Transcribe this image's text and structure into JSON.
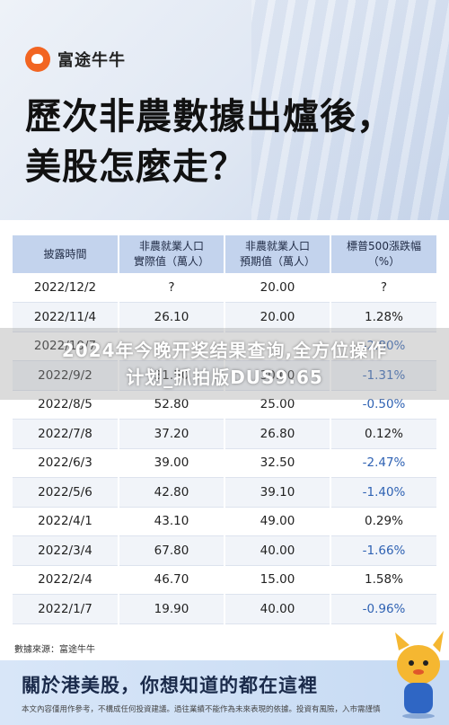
{
  "brand": {
    "name": "富途牛牛",
    "accent": "#f26522"
  },
  "title": {
    "line1": "歷次非農數據出爐後，",
    "line2": "美股怎麼走？"
  },
  "table": {
    "headers": [
      [
        "披露時間"
      ],
      [
        "非農就業人口",
        "實際值（萬人）"
      ],
      [
        "非農就業人口",
        "預期值（萬人）"
      ],
      [
        "標普500漲跌幅",
        "（%）"
      ]
    ],
    "rows": [
      [
        "2022/12/2",
        "?",
        "20.00",
        "?"
      ],
      [
        "2022/11/4",
        "26.10",
        "20.00",
        "1.28%"
      ],
      [
        "2022/10/7",
        "",
        "",
        "-2.80%"
      ],
      [
        "2022/9/2",
        "31.50",
        "30.00",
        "-1.31%"
      ],
      [
        "2022/8/5",
        "52.80",
        "25.00",
        "-0.50%"
      ],
      [
        "2022/7/8",
        "37.20",
        "26.80",
        "0.12%"
      ],
      [
        "2022/6/3",
        "39.00",
        "32.50",
        "-2.47%"
      ],
      [
        "2022/5/6",
        "42.80",
        "39.10",
        "-1.40%"
      ],
      [
        "2022/4/1",
        "43.10",
        "49.00",
        "0.29%"
      ],
      [
        "2022/3/4",
        "67.80",
        "40.00",
        "-1.66%"
      ],
      [
        "2022/2/4",
        "46.70",
        "15.00",
        "1.58%"
      ],
      [
        "2022/1/7",
        "19.90",
        "40.00",
        "-0.96%"
      ]
    ]
  },
  "source": "數據來源：富途牛牛",
  "footer": {
    "title": "關於港美股，你想知道的都在這裡",
    "note": "本文內容僅用作參考，不構成任何投資建議。過往業績不能作為未來表現的依據。投資有風險，入市需謹慎"
  },
  "watermark": {
    "line1": "2024年今晚开奖结果查询,全方位操作",
    "line2": "计划_抓拍版DUS9.65"
  },
  "colors": {
    "negative": "#2f62b3",
    "header_bg": "#c3d3ed",
    "footer_bg": "#d0e1f6"
  }
}
